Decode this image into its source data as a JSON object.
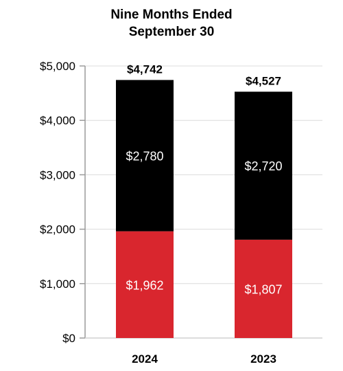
{
  "chart_data": {
    "type": "bar",
    "stacked": true,
    "title_lines": [
      "Nine Months Ended",
      "September 30"
    ],
    "categories": [
      "2024",
      "2023"
    ],
    "yticks": [
      "$0",
      "$1,000",
      "$2,000",
      "$3,000",
      "$4,000",
      "$5,000"
    ],
    "ytick_values": [
      0,
      1000,
      2000,
      3000,
      4000,
      5000
    ],
    "ylim": [
      0,
      5000
    ],
    "grid": true,
    "series": [
      {
        "values": [
          1962,
          1807
        ],
        "labels": [
          "$1,962",
          "$1,807"
        ],
        "color": "#d9262e"
      },
      {
        "values": [
          2780,
          2720
        ],
        "labels": [
          "$2,780",
          "$2,720"
        ],
        "color": "#000000"
      }
    ],
    "totals": [
      4742,
      4527
    ],
    "total_labels": [
      "$4,742",
      "$4,527"
    ]
  }
}
